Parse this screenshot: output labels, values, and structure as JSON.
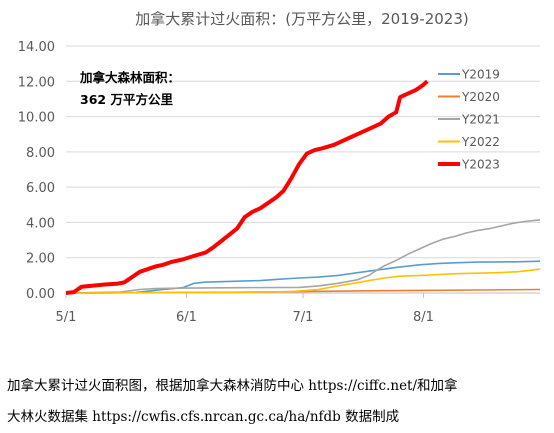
{
  "chart_data": {
    "type": "line",
    "title": "加拿大累计过火面积：(万平方公里，2019-2023)",
    "annotation": [
      "加拿大森林面积：",
      "362 万平方公里"
    ],
    "xlabel": "",
    "ylabel": "",
    "x_ticks": [
      "5/1",
      "6/1",
      "7/1",
      "8/1"
    ],
    "y_ticks": [
      "0.00",
      "2.00",
      "4.00",
      "6.00",
      "8.00",
      "10.00",
      "12.00",
      "14.00"
    ],
    "ylim": [
      0,
      14
    ],
    "xlim": [
      "2023-05-01",
      "2023-08-31"
    ],
    "grid": "horizontal",
    "legend_position": "right",
    "series": [
      {
        "name": "Y2019",
        "color": "#5b9bd5",
        "width": 1.6,
        "points": [
          [
            "05-01",
            0
          ],
          [
            "05-10",
            0
          ],
          [
            "05-19",
            0.03
          ],
          [
            "05-22",
            0.1
          ],
          [
            "05-26",
            0.2
          ],
          [
            "05-31",
            0.3
          ],
          [
            "06-03",
            0.55
          ],
          [
            "06-06",
            0.62
          ],
          [
            "06-12",
            0.66
          ],
          [
            "06-20",
            0.7
          ],
          [
            "06-25",
            0.78
          ],
          [
            "06-30",
            0.85
          ],
          [
            "07-05",
            0.9
          ],
          [
            "07-10",
            1.0
          ],
          [
            "07-15",
            1.15
          ],
          [
            "07-20",
            1.3
          ],
          [
            "07-25",
            1.45
          ],
          [
            "07-31",
            1.6
          ],
          [
            "08-05",
            1.68
          ],
          [
            "08-10",
            1.72
          ],
          [
            "08-15",
            1.75
          ],
          [
            "08-20",
            1.76
          ],
          [
            "08-25",
            1.77
          ],
          [
            "08-31",
            1.8
          ]
        ]
      },
      {
        "name": "Y2020",
        "color": "#ed7d31",
        "width": 1.6,
        "points": [
          [
            "05-01",
            0
          ],
          [
            "05-25",
            0.02
          ],
          [
            "06-10",
            0.04
          ],
          [
            "06-30",
            0.08
          ],
          [
            "07-15",
            0.12
          ],
          [
            "07-31",
            0.15
          ],
          [
            "08-15",
            0.17
          ],
          [
            "08-31",
            0.2
          ]
        ]
      },
      {
        "name": "Y2021",
        "color": "#a5a5a5",
        "width": 1.6,
        "points": [
          [
            "05-01",
            0
          ],
          [
            "05-15",
            0.05
          ],
          [
            "05-20",
            0.2
          ],
          [
            "05-24",
            0.25
          ],
          [
            "06-01",
            0.28
          ],
          [
            "06-15",
            0.3
          ],
          [
            "06-30",
            0.32
          ],
          [
            "07-05",
            0.4
          ],
          [
            "07-10",
            0.55
          ],
          [
            "07-15",
            0.75
          ],
          [
            "07-18",
            1.0
          ],
          [
            "07-20",
            1.3
          ],
          [
            "07-22",
            1.55
          ],
          [
            "07-25",
            1.85
          ],
          [
            "07-28",
            2.2
          ],
          [
            "07-31",
            2.5
          ],
          [
            "08-03",
            2.8
          ],
          [
            "08-06",
            3.05
          ],
          [
            "08-09",
            3.2
          ],
          [
            "08-12",
            3.4
          ],
          [
            "08-15",
            3.55
          ],
          [
            "08-18",
            3.65
          ],
          [
            "08-21",
            3.8
          ],
          [
            "08-24",
            3.95
          ],
          [
            "08-27",
            4.05
          ],
          [
            "08-29",
            4.1
          ],
          [
            "08-31",
            4.15
          ]
        ]
      },
      {
        "name": "Y2022",
        "color": "#ffc000",
        "width": 1.6,
        "points": [
          [
            "05-01",
            0
          ],
          [
            "06-10",
            0.03
          ],
          [
            "06-28",
            0.08
          ],
          [
            "07-05",
            0.2
          ],
          [
            "07-10",
            0.4
          ],
          [
            "07-14",
            0.55
          ],
          [
            "07-18",
            0.7
          ],
          [
            "07-22",
            0.85
          ],
          [
            "07-26",
            0.95
          ],
          [
            "07-31",
            1.0
          ],
          [
            "08-05",
            1.05
          ],
          [
            "08-10",
            1.1
          ],
          [
            "08-15",
            1.12
          ],
          [
            "08-20",
            1.15
          ],
          [
            "08-25",
            1.2
          ],
          [
            "08-31",
            1.35
          ]
        ]
      },
      {
        "name": "Y2023",
        "color": "#ff0000",
        "width": 4,
        "points": [
          [
            "05-01",
            0
          ],
          [
            "05-03",
            0.05
          ],
          [
            "05-05",
            0.35
          ],
          [
            "05-08",
            0.42
          ],
          [
            "05-11",
            0.48
          ],
          [
            "05-14",
            0.52
          ],
          [
            "05-16",
            0.6
          ],
          [
            "05-18",
            0.9
          ],
          [
            "05-20",
            1.2
          ],
          [
            "05-22",
            1.35
          ],
          [
            "05-24",
            1.5
          ],
          [
            "05-26",
            1.6
          ],
          [
            "05-28",
            1.75
          ],
          [
            "05-31",
            1.9
          ],
          [
            "06-03",
            2.1
          ],
          [
            "06-06",
            2.3
          ],
          [
            "06-08",
            2.6
          ],
          [
            "06-10",
            2.95
          ],
          [
            "06-12",
            3.3
          ],
          [
            "06-14",
            3.65
          ],
          [
            "06-16",
            4.3
          ],
          [
            "06-18",
            4.6
          ],
          [
            "06-20",
            4.8
          ],
          [
            "06-22",
            5.1
          ],
          [
            "06-24",
            5.4
          ],
          [
            "06-26",
            5.8
          ],
          [
            "06-28",
            6.5
          ],
          [
            "06-30",
            7.3
          ],
          [
            "07-02",
            7.9
          ],
          [
            "07-04",
            8.1
          ],
          [
            "07-06",
            8.2
          ],
          [
            "07-09",
            8.4
          ],
          [
            "07-12",
            8.7
          ],
          [
            "07-15",
            9.0
          ],
          [
            "07-18",
            9.3
          ],
          [
            "07-21",
            9.6
          ],
          [
            "07-23",
            10.0
          ],
          [
            "07-25",
            10.25
          ],
          [
            "07-26",
            11.1
          ],
          [
            "07-28",
            11.3
          ],
          [
            "07-30",
            11.5
          ],
          [
            "08-01",
            11.8
          ],
          [
            "08-02",
            12.0
          ]
        ]
      }
    ]
  },
  "caption": [
    "加拿大累计过火面积图，根据加拿大森林消防中心 https://ciffc.net/和加拿",
    "大林火数据集 https://cwfis.cfs.nrcan.gc.ca/ha/nfdb 数据制成"
  ]
}
